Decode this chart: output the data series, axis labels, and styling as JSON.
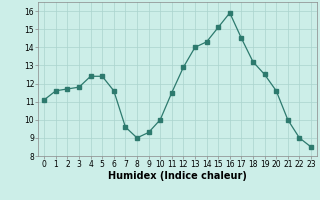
{
  "x": [
    0,
    1,
    2,
    3,
    4,
    5,
    6,
    7,
    8,
    9,
    10,
    11,
    12,
    13,
    14,
    15,
    16,
    17,
    18,
    19,
    20,
    21,
    22,
    23
  ],
  "y": [
    11.1,
    11.6,
    11.7,
    11.8,
    12.4,
    12.4,
    11.6,
    9.6,
    9.0,
    9.3,
    10.0,
    11.5,
    12.9,
    14.0,
    14.3,
    15.1,
    15.9,
    14.5,
    13.2,
    12.5,
    11.6,
    10.0,
    9.0,
    8.5
  ],
  "xlabel": "Humidex (Indice chaleur)",
  "ylabel": "",
  "title": "",
  "line_color": "#2d7a6e",
  "marker_color": "#2d7a6e",
  "bg_color": "#cceee8",
  "grid_color": "#aad4ce",
  "xlim": [
    -0.5,
    23.5
  ],
  "ylim": [
    8,
    16.5
  ],
  "xticks": [
    0,
    1,
    2,
    3,
    4,
    5,
    6,
    7,
    8,
    9,
    10,
    11,
    12,
    13,
    14,
    15,
    16,
    17,
    18,
    19,
    20,
    21,
    22,
    23
  ],
  "yticks": [
    8,
    9,
    10,
    11,
    12,
    13,
    14,
    15,
    16
  ],
  "tick_fontsize": 5.5,
  "xlabel_fontsize": 7.0
}
